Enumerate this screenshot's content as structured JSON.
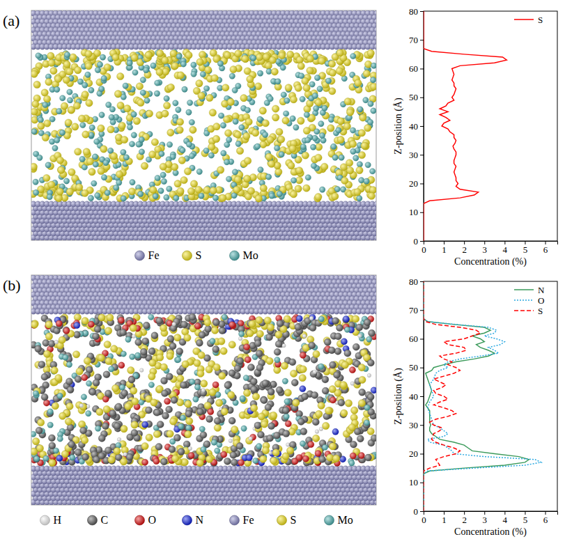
{
  "snapshots": [
    {
      "label": "(a)",
      "atoms": [
        {
          "name": "Fe",
          "color": "#8c8cc8"
        },
        {
          "name": "S",
          "color": "#f2e21c"
        },
        {
          "name": "Mo",
          "color": "#4fb3b3"
        }
      ]
    },
    {
      "label": "(b)",
      "atoms": [
        {
          "name": "H",
          "color": "#f4f4f4"
        },
        {
          "name": "C",
          "color": "#5e5e5e"
        },
        {
          "name": "O",
          "color": "#e01414"
        },
        {
          "name": "N",
          "color": "#1426e0"
        },
        {
          "name": "Fe",
          "color": "#8c8cc8"
        },
        {
          "name": "S",
          "color": "#f2e21c"
        },
        {
          "name": "Mo",
          "color": "#4fb3b3"
        }
      ]
    }
  ],
  "chart_data": [
    {
      "type": "line",
      "orientation": "horizontal",
      "x_label": "Concentration (%)",
      "y_label": "Z-position (Å)",
      "xlim": [
        0,
        6.6
      ],
      "xticks": [
        0,
        1,
        2,
        3,
        4,
        5,
        6
      ],
      "ylim": [
        0,
        80
      ],
      "yticks": [
        0,
        10,
        20,
        30,
        40,
        50,
        60,
        70,
        80
      ],
      "legend": "top-right",
      "y": [
        0,
        13,
        14,
        15,
        16,
        17,
        18,
        19,
        20,
        21,
        22,
        23,
        24,
        25,
        26,
        27,
        28,
        29,
        30,
        31,
        32,
        33,
        34,
        35,
        36,
        37,
        38,
        39,
        40,
        41,
        42,
        43,
        44,
        45,
        46,
        47,
        48,
        49,
        50,
        51,
        52,
        53,
        54,
        55,
        56,
        57,
        58,
        59,
        60,
        61,
        62,
        63,
        64,
        65,
        66,
        67,
        80
      ],
      "series": [
        {
          "name": "S",
          "color": "#ff0000",
          "line_style": "solid",
          "values": [
            0,
            0,
            0.3,
            1.8,
            2.5,
            2.7,
            1.8,
            1.6,
            1.7,
            1.6,
            1.6,
            1.55,
            1.5,
            1.55,
            1.6,
            1.5,
            1.5,
            1.55,
            1.6,
            1.6,
            1.5,
            1.45,
            1.55,
            1.6,
            1.5,
            1.5,
            1.3,
            1.2,
            0.9,
            1.0,
            1.3,
            1.1,
            0.8,
            1.2,
            0.8,
            1.1,
            1.2,
            1.5,
            1.4,
            1.5,
            1.55,
            1.6,
            1.5,
            1.5,
            1.4,
            1.45,
            1.5,
            1.45,
            1.4,
            1.8,
            3.5,
            4.1,
            3.9,
            2.0,
            0.4,
            0,
            0
          ]
        }
      ]
    },
    {
      "type": "line",
      "orientation": "horizontal",
      "x_label": "Concentration (%)",
      "y_label": "Z-position (Å)",
      "xlim": [
        0,
        6.6
      ],
      "xticks": [
        0,
        1,
        2,
        3,
        4,
        5,
        6
      ],
      "ylim": [
        0,
        80
      ],
      "yticks": [
        0,
        10,
        20,
        30,
        40,
        50,
        60,
        70,
        80
      ],
      "legend": "top-right",
      "y": [
        0,
        13,
        14,
        15,
        16,
        17,
        18,
        19,
        20,
        21,
        22,
        23,
        24,
        25,
        26,
        27,
        28,
        29,
        30,
        31,
        32,
        33,
        34,
        35,
        36,
        37,
        38,
        39,
        40,
        41,
        42,
        43,
        44,
        45,
        46,
        47,
        48,
        49,
        50,
        51,
        52,
        53,
        54,
        55,
        56,
        57,
        58,
        59,
        60,
        61,
        62,
        63,
        64,
        65,
        66,
        67,
        80
      ],
      "series": [
        {
          "name": "N",
          "color": "#3a9a5a",
          "line_style": "solid",
          "values": [
            0,
            0,
            0.3,
            2.0,
            4.0,
            5.0,
            5.2,
            4.7,
            3.5,
            2.4,
            2.2,
            2.0,
            1.5,
            0.8,
            0.6,
            0.4,
            0.3,
            0.3,
            0.35,
            0.3,
            0.3,
            0.3,
            0.3,
            0.3,
            0.2,
            0.1,
            0.2,
            0.25,
            0.3,
            0.35,
            0.4,
            0.35,
            0.3,
            0.25,
            0.2,
            0.15,
            0.1,
            0.4,
            0.5,
            1.0,
            1.6,
            2.5,
            3.2,
            3.5,
            3.2,
            2.8,
            2.6,
            3.0,
            2.8,
            2.4,
            3.0,
            3.3,
            3.0,
            1.5,
            0.2,
            0,
            0
          ]
        },
        {
          "name": "O",
          "color": "#2aa8e0",
          "line_style": "dotted",
          "values": [
            0,
            0,
            0.2,
            2.5,
            5.0,
            5.8,
            5.5,
            3.0,
            1.5,
            1.4,
            1.2,
            1.0,
            0.3,
            0.2,
            1.0,
            1.2,
            1.0,
            0.8,
            0.5,
            0.45,
            0.4,
            0.35,
            0.3,
            0.25,
            0.2,
            0.25,
            0.3,
            0.4,
            0.5,
            0.45,
            0.4,
            0.35,
            0.3,
            0.4,
            0.5,
            0.55,
            0.6,
            0.8,
            1.2,
            1.0,
            1.2,
            1.8,
            2.8,
            3.7,
            3.5,
            3.2,
            3.8,
            4.0,
            3.6,
            3.0,
            3.5,
            3.6,
            3.2,
            1.6,
            0.2,
            0,
            0
          ]
        },
        {
          "name": "S",
          "color": "#ff0000",
          "line_style": "dashed",
          "values": [
            0,
            0,
            0,
            0.3,
            0.8,
            0.7,
            0.6,
            1.0,
            1.6,
            1.8,
            1.5,
            1.0,
            0.6,
            0.4,
            0.45,
            0.5,
            0.8,
            0.9,
            0.5,
            0.3,
            0.6,
            1.2,
            1.6,
            1.4,
            1.0,
            0.5,
            0.8,
            1.2,
            1.0,
            0.6,
            0.5,
            0.9,
            1.1,
            0.8,
            0.5,
            1.0,
            1.5,
            1.8,
            1.6,
            1.2,
            1.4,
            1.0,
            0.8,
            1.6,
            2.1,
            2.0,
            1.2,
            1.0,
            2.0,
            2.4,
            2.8,
            2.6,
            1.8,
            0.6,
            0.1,
            0,
            0
          ]
        }
      ]
    }
  ]
}
